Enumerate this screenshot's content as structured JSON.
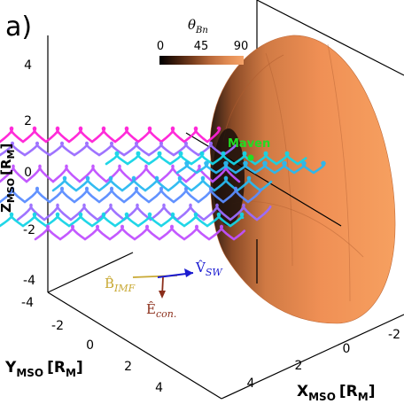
{
  "panel_label": "a)",
  "chart_data": {
    "type": "3d-line",
    "subtype": "ion trajectories with bow shock surface",
    "axes": {
      "x": {
        "label_main": "X",
        "label_sub": "MSO",
        "label_unit": "[R",
        "label_unit_sub": "M",
        "label_close": "]",
        "ticks": [
          "4",
          "2",
          "0",
          "-2"
        ],
        "range": [
          4,
          -2
        ]
      },
      "y": {
        "label_main": "Y",
        "label_sub": "MSO",
        "label_unit": "[R",
        "label_unit_sub": "M",
        "label_close": "]",
        "ticks": [
          "-4",
          "-2",
          "0",
          "2",
          "4"
        ],
        "range": [
          -4,
          4
        ]
      },
      "z": {
        "label_main": "Z",
        "label_sub": "MSO",
        "label_unit": "[R",
        "label_unit_sub": "M",
        "label_close": "]",
        "ticks": [
          "4",
          "2",
          "0",
          "-2",
          "-4"
        ],
        "range": [
          -4,
          4
        ]
      }
    },
    "colorbar": {
      "title": "θ",
      "title_sub": "Bn",
      "ticks": [
        "0",
        "45",
        "90"
      ],
      "range": [
        0,
        90
      ],
      "colors": [
        "#000000",
        "#3d1c0c",
        "#7a3f1e",
        "#b8683a",
        "#e08a52",
        "#f5a46a"
      ]
    },
    "spacecraft": {
      "label": "Maven",
      "color": "#22dd22"
    },
    "vectors": [
      {
        "label": "B̂",
        "label_sub": "IMF",
        "color": "#c8a832"
      },
      {
        "label": "V̂",
        "label_sub": "SW",
        "color": "#1a1ad0"
      },
      {
        "label": "Ê",
        "label_sub": "con.",
        "color": "#8b2e1a"
      }
    ],
    "trajectory_colors": [
      "#ff1fd6",
      "#c050ff",
      "#9a6bff",
      "#5a8cff",
      "#28b8f0",
      "#14d4e6"
    ]
  }
}
